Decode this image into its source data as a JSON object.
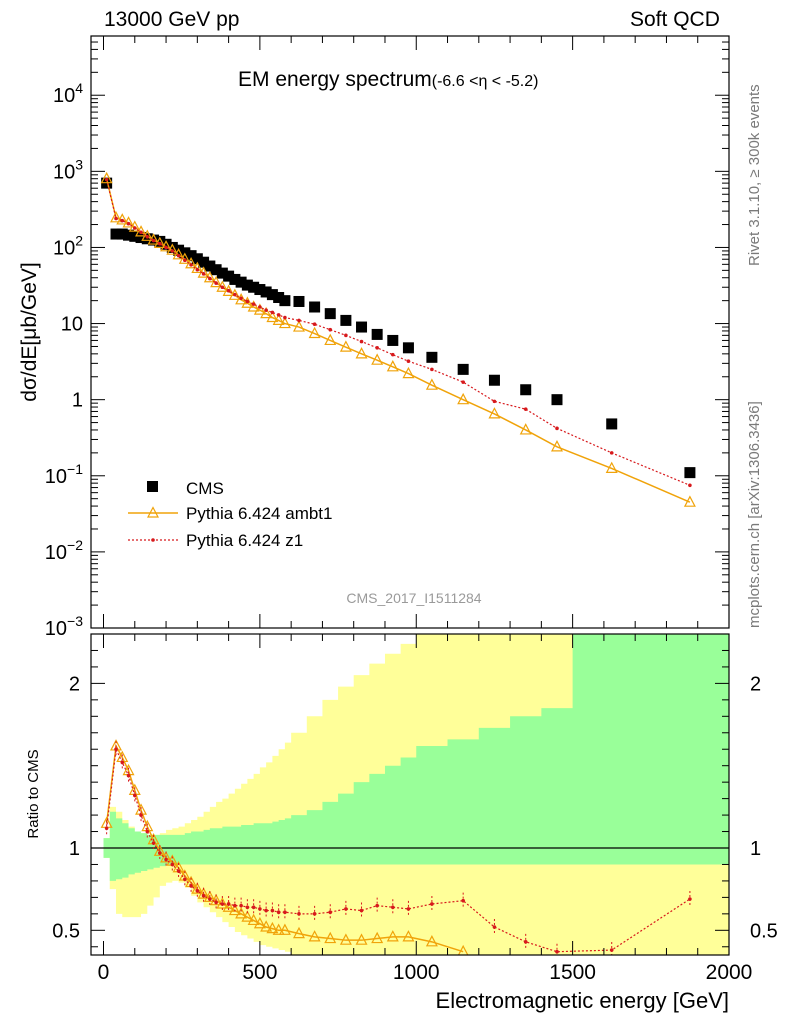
{
  "header": {
    "left": "13000 GeV pp",
    "right": "Soft QCD"
  },
  "side_labels": {
    "rivet": "Rivet 3.1.10, ≥ 300k events",
    "mcplots": "mcplots.cern.ch [arXiv:1306.3436]"
  },
  "chart_data": [
    {
      "type": "scatter",
      "title": "EM energy spectrum",
      "title_cut": "(-6.6 <η < -5.2)",
      "ylabel": "dσ/dE[μb/GeV]",
      "xlabel": "",
      "yscale": "log",
      "ylim": [
        0.001,
        60000
      ],
      "xlim": [
        -40,
        2000
      ],
      "watermark": "CMS_2017_I1511284",
      "ytick_labels": [
        {
          "value": 0.001,
          "base": "10",
          "exp": "−3"
        },
        {
          "value": 0.01,
          "base": "10",
          "exp": "−2"
        },
        {
          "value": 0.1,
          "base": "10",
          "exp": "−1"
        },
        {
          "value": 1,
          "base": "1",
          "exp": ""
        },
        {
          "value": 10,
          "base": "10",
          "exp": ""
        },
        {
          "value": 100,
          "base": "10",
          "exp": "2"
        },
        {
          "value": 1000,
          "base": "10",
          "exp": "3"
        },
        {
          "value": 10000,
          "base": "10",
          "exp": "4"
        }
      ],
      "legend_position": "bottom-left",
      "series": [
        {
          "name": "CMS",
          "style": "black-square-markers",
          "color": "#000000",
          "x": [
            10,
            40,
            60,
            80,
            100,
            120,
            140,
            160,
            180,
            200,
            220,
            240,
            260,
            280,
            300,
            320,
            340,
            360,
            380,
            400,
            420,
            440,
            460,
            480,
            500,
            520,
            540,
            560,
            580,
            625,
            675,
            725,
            775,
            825,
            875,
            925,
            975,
            1050,
            1150,
            1250,
            1350,
            1450,
            1625,
            1875
          ],
          "y": [
            700,
            150,
            150,
            145,
            140,
            135,
            130,
            125,
            120,
            110,
            100,
            92,
            85,
            78,
            71,
            64,
            57,
            51,
            46,
            42,
            38,
            35,
            32,
            30,
            28,
            26,
            24,
            22,
            20,
            19.5,
            16.5,
            13.5,
            11,
            9,
            7.2,
            6,
            4.8,
            3.6,
            2.5,
            1.8,
            1.35,
            1.0,
            0.48,
            0.11
          ]
        },
        {
          "name": "Pythia 6.424 ambt1",
          "style": "orange-line-open-triangles",
          "color": "#f0a30a",
          "x": [
            10,
            40,
            60,
            80,
            100,
            120,
            140,
            160,
            180,
            200,
            220,
            240,
            260,
            280,
            300,
            320,
            340,
            360,
            380,
            400,
            420,
            440,
            460,
            480,
            500,
            520,
            540,
            560,
            580,
            625,
            675,
            725,
            775,
            825,
            875,
            925,
            975,
            1050,
            1150,
            1250,
            1350,
            1450,
            1625,
            1875
          ],
          "y": [
            800,
            245,
            230,
            210,
            185,
            160,
            140,
            125,
            113,
            102,
            92,
            80,
            70,
            61,
            53,
            46,
            40,
            34.5,
            30,
            26.5,
            23.5,
            20.5,
            18.5,
            16.5,
            15,
            13.5,
            12,
            11,
            10,
            9,
            7.4,
            6,
            4.9,
            4.0,
            3.3,
            2.7,
            2.2,
            1.55,
            1.0,
            0.65,
            0.4,
            0.24,
            0.125,
            0.045
          ]
        },
        {
          "name": "Pythia 6.424 z1",
          "style": "red-dotted-line-small-markers",
          "color": "#d7191c",
          "x": [
            10,
            40,
            60,
            80,
            100,
            120,
            140,
            160,
            180,
            200,
            220,
            240,
            260,
            280,
            300,
            320,
            340,
            360,
            380,
            400,
            420,
            440,
            460,
            480,
            500,
            520,
            540,
            560,
            580,
            625,
            675,
            725,
            775,
            825,
            875,
            925,
            975,
            1050,
            1150,
            1250,
            1350,
            1450,
            1625,
            1875
          ],
          "y": [
            780,
            240,
            225,
            205,
            180,
            158,
            138,
            123,
            112,
            100,
            90,
            78,
            68,
            59,
            51,
            45,
            39,
            34,
            30,
            27,
            24,
            21.5,
            19.5,
            18,
            16.5,
            15,
            14,
            13,
            12,
            11,
            9.8,
            8.3,
            7,
            5.8,
            4.8,
            3.9,
            3.2,
            2.5,
            1.7,
            0.95,
            0.75,
            0.42,
            0.2,
            0.075
          ]
        }
      ]
    },
    {
      "type": "line",
      "ylabel": "Ratio to CMS",
      "xlabel": "Electromagnetic energy [GeV]",
      "ylim": [
        0.35,
        2.3
      ],
      "xlim": [
        -40,
        2000
      ],
      "reference_line": 1,
      "ytick_labels": [
        "0.5",
        "1",
        "2"
      ],
      "ytick_values": [
        0.5,
        1,
        2
      ],
      "xtick_labels": [
        "0",
        "500",
        "1000",
        "1500",
        "2000"
      ],
      "xtick_values": [
        0,
        500,
        1000,
        1500,
        2000
      ],
      "uncertainty_bands": {
        "bin_edges": [
          0,
          20,
          40,
          60,
          80,
          100,
          120,
          140,
          160,
          180,
          200,
          220,
          240,
          260,
          280,
          300,
          320,
          340,
          360,
          380,
          400,
          420,
          440,
          460,
          480,
          500,
          520,
          540,
          560,
          580,
          600,
          650,
          700,
          750,
          800,
          850,
          900,
          950,
          1000,
          1100,
          1200,
          1300,
          1400,
          1500,
          1750,
          2000
        ],
        "stat_low": [
          0.94,
          0.8,
          0.81,
          0.82,
          0.84,
          0.85,
          0.86,
          0.87,
          0.88,
          0.89,
          0.9,
          0.9,
          0.9,
          0.9,
          0.9,
          0.9,
          0.9,
          0.9,
          0.9,
          0.9,
          0.9,
          0.9,
          0.9,
          0.9,
          0.9,
          0.9,
          0.9,
          0.9,
          0.9,
          0.9,
          0.9,
          0.9,
          0.9,
          0.9,
          0.9,
          0.9,
          0.9,
          0.9,
          0.9,
          0.9,
          0.9,
          0.9,
          0.9,
          0.9,
          0.9
        ],
        "stat_high": [
          1.06,
          1.22,
          1.18,
          1.15,
          1.12,
          1.1,
          1.09,
          1.08,
          1.08,
          1.08,
          1.08,
          1.08,
          1.08,
          1.09,
          1.1,
          1.1,
          1.11,
          1.12,
          1.12,
          1.13,
          1.13,
          1.13,
          1.14,
          1.14,
          1.15,
          1.15,
          1.15,
          1.16,
          1.17,
          1.18,
          1.2,
          1.23,
          1.28,
          1.33,
          1.4,
          1.45,
          1.5,
          1.55,
          1.62,
          1.66,
          1.73,
          1.8,
          1.85,
          2.3,
          2.3
        ],
        "total_low": [
          0.94,
          0.75,
          0.6,
          0.58,
          0.58,
          0.58,
          0.6,
          0.65,
          0.7,
          0.77,
          0.79,
          0.8,
          0.79,
          0.76,
          0.71,
          0.67,
          0.64,
          0.61,
          0.58,
          0.55,
          0.52,
          0.49,
          0.47,
          0.45,
          0.43,
          0.41,
          0.4,
          0.39,
          0.38,
          0.37,
          0.35,
          0.35,
          0.35,
          0.35,
          0.35,
          0.35,
          0.35,
          0.35,
          0.35,
          0.35,
          0.35,
          0.35,
          0.35,
          0.35,
          0.35
        ],
        "total_high": [
          1.06,
          1.25,
          1.22,
          1.17,
          1.13,
          1.1,
          1.09,
          1.08,
          1.08,
          1.09,
          1.11,
          1.12,
          1.13,
          1.15,
          1.17,
          1.19,
          1.22,
          1.25,
          1.28,
          1.3,
          1.33,
          1.36,
          1.39,
          1.42,
          1.45,
          1.49,
          1.52,
          1.56,
          1.6,
          1.64,
          1.7,
          1.8,
          1.9,
          1.98,
          2.05,
          2.12,
          2.18,
          2.24,
          2.3,
          2.3,
          2.3,
          2.3,
          2.3,
          2.3,
          2.3
        ]
      },
      "series": [
        {
          "name": "Pythia 6.424 ambt1",
          "color": "#f0a30a",
          "x": [
            10,
            40,
            60,
            80,
            100,
            120,
            140,
            160,
            180,
            200,
            220,
            240,
            260,
            280,
            300,
            320,
            340,
            360,
            380,
            400,
            420,
            440,
            460,
            480,
            500,
            520,
            540,
            560,
            580,
            625,
            675,
            725,
            775,
            825,
            875,
            925,
            975,
            1050,
            1150
          ],
          "y": [
            1.15,
            1.62,
            1.55,
            1.47,
            1.35,
            1.23,
            1.13,
            1.05,
            0.98,
            0.94,
            0.92,
            0.88,
            0.83,
            0.79,
            0.75,
            0.72,
            0.7,
            0.68,
            0.66,
            0.64,
            0.62,
            0.6,
            0.58,
            0.56,
            0.54,
            0.52,
            0.51,
            0.5,
            0.5,
            0.48,
            0.46,
            0.45,
            0.44,
            0.44,
            0.45,
            0.46,
            0.46,
            0.43,
            0.37
          ]
        },
        {
          "name": "Pythia 6.424 z1",
          "color": "#d7191c",
          "x": [
            10,
            40,
            60,
            80,
            100,
            120,
            140,
            160,
            180,
            200,
            220,
            240,
            260,
            280,
            300,
            320,
            340,
            360,
            380,
            400,
            420,
            440,
            460,
            480,
            500,
            520,
            540,
            560,
            580,
            625,
            675,
            725,
            775,
            825,
            875,
            925,
            975,
            1050,
            1150,
            1250,
            1350,
            1450,
            1625,
            1875
          ],
          "y": [
            1.12,
            1.6,
            1.52,
            1.44,
            1.32,
            1.2,
            1.1,
            1.03,
            0.97,
            0.93,
            0.9,
            0.86,
            0.81,
            0.77,
            0.74,
            0.71,
            0.69,
            0.67,
            0.66,
            0.66,
            0.65,
            0.65,
            0.64,
            0.64,
            0.63,
            0.62,
            0.62,
            0.61,
            0.61,
            0.6,
            0.6,
            0.61,
            0.63,
            0.62,
            0.65,
            0.64,
            0.63,
            0.66,
            0.68,
            0.52,
            0.43,
            0.37,
            0.38,
            0.69
          ]
        }
      ]
    }
  ]
}
